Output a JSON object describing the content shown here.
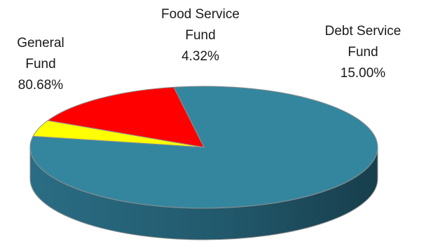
{
  "chart_data": {
    "type": "pie",
    "title": "",
    "three_d": true,
    "start_angle_deg": -100,
    "slices": [
      {
        "name_lines": [
          "General",
          "Fund"
        ],
        "value": 80.68,
        "value_label": "80.68%",
        "color": "#34869e",
        "side_color": "#25647a"
      },
      {
        "name_lines": [
          "Food Service",
          "Fund"
        ],
        "value": 4.32,
        "value_label": "4.32%",
        "color": "#ffff00",
        "side_color": "#c9c900"
      },
      {
        "name_lines": [
          "Debt Service",
          "Fund"
        ],
        "value": 15.0,
        "value_label": "15.00%",
        "color": "#ff0000",
        "side_color": "#b30000"
      }
    ],
    "legend": "none",
    "outline_color": "#8f8f8f"
  }
}
